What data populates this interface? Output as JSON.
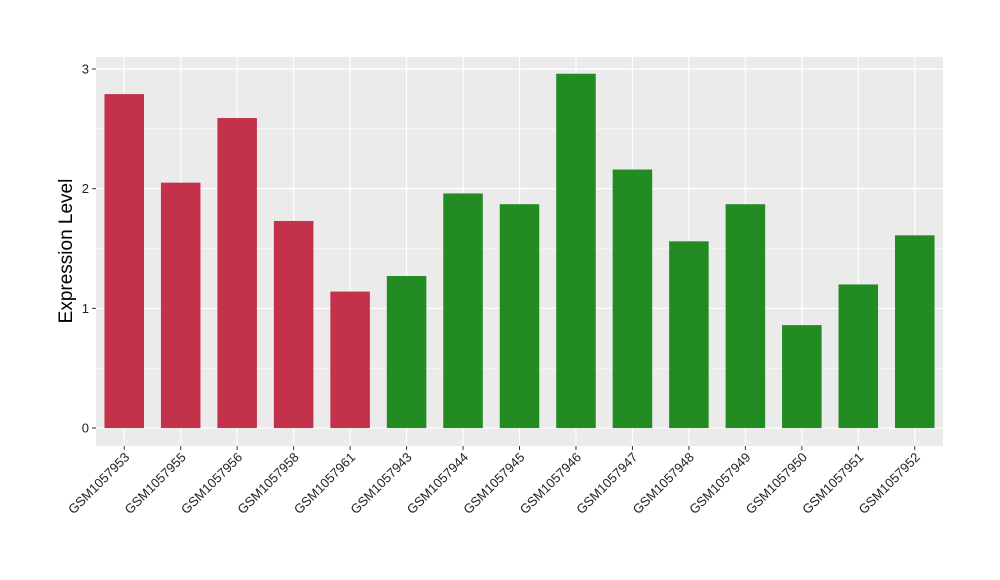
{
  "chart_data": {
    "type": "bar",
    "title": "",
    "xlabel": "",
    "ylabel": "Expression Level",
    "ylim": [
      -0.15,
      3.1
    ],
    "yticks": [
      0,
      1,
      2,
      3
    ],
    "grid": true,
    "categories": [
      "GSM1057953",
      "GSM1057955",
      "GSM1057956",
      "GSM1057958",
      "GSM1057961",
      "GSM1057943",
      "GSM1057944",
      "GSM1057945",
      "GSM1057946",
      "GSM1057947",
      "GSM1057948",
      "GSM1057949",
      "GSM1057950",
      "GSM1057951",
      "GSM1057952"
    ],
    "values": [
      2.79,
      2.05,
      2.59,
      1.73,
      1.14,
      1.27,
      1.96,
      1.87,
      2.96,
      2.16,
      1.56,
      1.87,
      0.86,
      1.2,
      1.61
    ],
    "bar_colors": [
      "#c4314b",
      "#c4314b",
      "#c4314b",
      "#c4314b",
      "#c4314b",
      "#228b22",
      "#228b22",
      "#228b22",
      "#228b22",
      "#228b22",
      "#228b22",
      "#228b22",
      "#228b22",
      "#228b22",
      "#228b22"
    ],
    "panel_background": "#ebebeb",
    "grid_color": "#ffffff"
  }
}
